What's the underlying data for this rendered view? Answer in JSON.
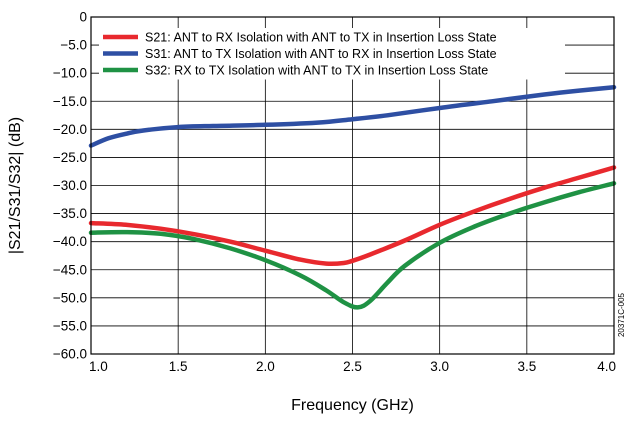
{
  "chart_data": {
    "type": "line",
    "xlabel": "Frequency (GHz)",
    "ylabel": "|S21/S31/S32| (dB)",
    "xlim": [
      1.0,
      4.0
    ],
    "ylim": [
      -60,
      0
    ],
    "x_ticks": [
      1.0,
      1.5,
      2.0,
      2.5,
      3.0,
      3.5,
      4.0
    ],
    "x_tick_labels": [
      "1.0",
      "1.5",
      "2.0",
      "2.5",
      "3.0",
      "3.5",
      "4.0"
    ],
    "y_ticks": [
      0,
      -5,
      -10,
      -15,
      -20,
      -25,
      -30,
      -35,
      -40,
      -45,
      -50,
      -55,
      -60
    ],
    "y_tick_labels": [
      "0",
      "−5.0",
      "−10.0",
      "−15.0",
      "−20.0",
      "−25.0",
      "−30.0",
      "−35.0",
      "−40.0",
      "−45.0",
      "−50.0",
      "−55.0",
      "−60.0"
    ],
    "grid": true,
    "legend_position": "top-right",
    "watermark": "20371C-005",
    "series": [
      {
        "name": "S21: ANT to RX Isolation with ANT to TX in Insertion Loss State",
        "color": "#e8292e",
        "x": [
          1.0,
          1.2,
          1.4,
          1.6,
          1.8,
          2.0,
          2.2,
          2.35,
          2.45,
          2.5,
          2.6,
          2.8,
          3.0,
          3.2,
          3.4,
          3.6,
          3.8,
          4.0
        ],
        "y": [
          -36.7,
          -37.0,
          -37.7,
          -38.7,
          -40.0,
          -41.6,
          -43.2,
          -43.9,
          -43.8,
          -43.4,
          -42.3,
          -39.8,
          -37.0,
          -34.6,
          -32.4,
          -30.4,
          -28.6,
          -26.8
        ]
      },
      {
        "name": "S31: ANT to TX Isolation with ANT to RX in Insertion Loss State",
        "color": "#2e4fa3",
        "x": [
          1.0,
          1.1,
          1.2,
          1.3,
          1.5,
          1.7,
          2.0,
          2.3,
          2.5,
          2.7,
          3.0,
          3.3,
          3.6,
          3.8,
          4.0
        ],
        "y": [
          -22.9,
          -21.6,
          -20.8,
          -20.2,
          -19.6,
          -19.4,
          -19.2,
          -18.8,
          -18.2,
          -17.5,
          -16.2,
          -15.0,
          -13.8,
          -13.1,
          -12.5
        ]
      },
      {
        "name": "S32: RX to TX Isolation with ANT to TX in Insertion Loss State",
        "color": "#1f9244",
        "x": [
          1.0,
          1.2,
          1.4,
          1.6,
          1.8,
          2.0,
          2.2,
          2.35,
          2.45,
          2.53,
          2.6,
          2.7,
          2.8,
          3.0,
          3.2,
          3.4,
          3.6,
          3.8,
          4.0
        ],
        "y": [
          -38.4,
          -38.3,
          -38.6,
          -39.6,
          -41.2,
          -43.3,
          -46.0,
          -48.7,
          -50.8,
          -51.7,
          -50.6,
          -47.3,
          -44.3,
          -40.2,
          -37.3,
          -35.0,
          -33.0,
          -31.2,
          -29.6
        ]
      }
    ]
  }
}
